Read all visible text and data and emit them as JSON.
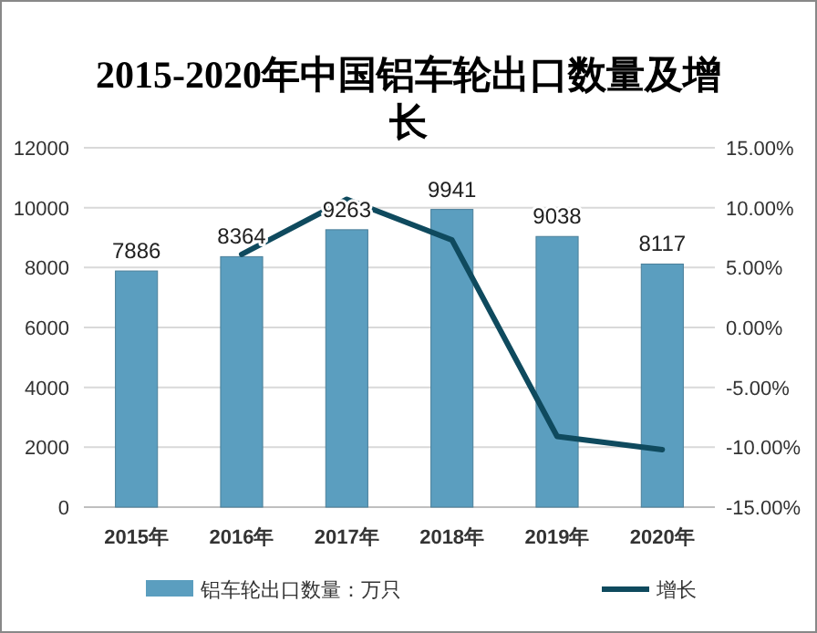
{
  "chart_data": {
    "type": "bar",
    "title": "2015-2020年中国铝车轮出口数量及增长",
    "categories": [
      "2015年",
      "2016年",
      "2017年",
      "2018年",
      "2019年",
      "2020年"
    ],
    "series": [
      {
        "name": "铝车轮出口数量：万只",
        "color": "#5b9ebf",
        "values": [
          7886,
          8364,
          9263,
          9941,
          9038,
          8117
        ],
        "value_labels": [
          "7886",
          "8364",
          "9263",
          "9941",
          "9038",
          "8117"
        ]
      },
      {
        "name": "增长",
        "type": "line",
        "axis": "y2",
        "color": "#0f4a5e",
        "values": [
          null,
          6.1,
          10.7,
          7.3,
          -9.1,
          -10.2
        ]
      }
    ],
    "ylim": [
      0,
      12000
    ],
    "yticks": [
      0,
      2000,
      4000,
      6000,
      8000,
      10000,
      12000
    ],
    "y2lim": [
      -15,
      15
    ],
    "y2ticks": [
      {
        "value": -15,
        "label": "-15.00%"
      },
      {
        "value": -10,
        "label": "-10.00%"
      },
      {
        "value": -5,
        "label": "-5.00%"
      },
      {
        "value": 0,
        "label": "0.00%"
      },
      {
        "value": 5,
        "label": "5.00%"
      },
      {
        "value": 10,
        "label": "10.00%"
      },
      {
        "value": 15,
        "label": "15.00%"
      }
    ],
    "grid": "y",
    "legend": "bottom",
    "marker": "none"
  }
}
